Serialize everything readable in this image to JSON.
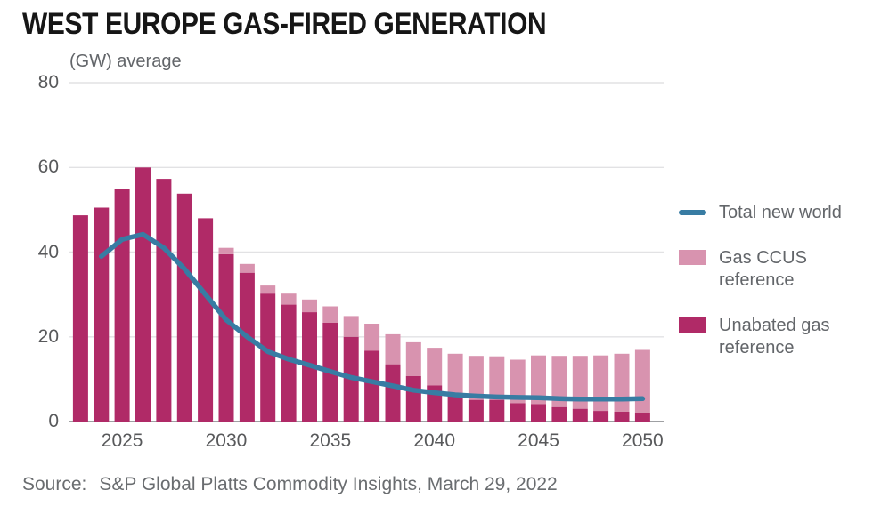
{
  "title": "WEST EUROPE GAS-FIRED GENERATION",
  "axis_note": "(GW) average",
  "source": {
    "label": "Source:",
    "text": "S&P Global Platts Commodity Insights, March 29, 2022"
  },
  "colors": {
    "unabated": "#b02a67",
    "ccus": "#d893af",
    "line": "#387ca3",
    "grid": "#e2e2e4",
    "axis_line": "#9fa0a3",
    "tick_text": "#58595b",
    "title_text": "#161616",
    "muted_text": "#63666a"
  },
  "legend": {
    "items": [
      {
        "label": "Total new world",
        "swatch": "line",
        "color": "#387ca3"
      },
      {
        "label": "Gas CCUS reference",
        "swatch": "rect",
        "color": "#d893af"
      },
      {
        "label": "Unabated gas reference",
        "swatch": "rect",
        "color": "#b02a67"
      }
    ]
  },
  "chart_data": {
    "type": "bar",
    "subtype": "stacked-bars-with-line",
    "title": "WEST EUROPE GAS-FIRED GENERATION",
    "ylabel": "(GW) average",
    "xlabel": "",
    "ylim": [
      0,
      80
    ],
    "yticks": [
      0,
      20,
      40,
      60,
      80
    ],
    "xticks": [
      2025,
      2030,
      2035,
      2040,
      2045,
      2050
    ],
    "grid": true,
    "legend_position": "right",
    "categories": [
      2023,
      2024,
      2025,
      2026,
      2027,
      2028,
      2029,
      2030,
      2031,
      2032,
      2033,
      2034,
      2035,
      2036,
      2037,
      2038,
      2039,
      2040,
      2041,
      2042,
      2043,
      2044,
      2045,
      2046,
      2047,
      2048,
      2049,
      2050
    ],
    "series": [
      {
        "name": "Unabated gas reference",
        "type": "bar",
        "stack": "gas",
        "values": [
          48.7,
          50.5,
          54.8,
          60.0,
          57.3,
          53.8,
          48.0,
          39.5,
          35.1,
          30.2,
          27.6,
          25.8,
          23.3,
          20.0,
          16.7,
          13.5,
          10.7,
          8.5,
          6.0,
          5.1,
          5.1,
          4.3,
          4.1,
          3.4,
          3.0,
          2.5,
          2.3,
          2.1
        ]
      },
      {
        "name": "Gas CCUS reference",
        "type": "bar",
        "stack": "gas",
        "values": [
          0,
          0,
          0,
          0,
          0,
          0,
          0,
          1.5,
          2.1,
          1.9,
          2.6,
          3.0,
          3.9,
          4.9,
          6.4,
          7.1,
          8.0,
          8.9,
          10.0,
          10.4,
          10.3,
          10.3,
          11.5,
          12.1,
          12.5,
          13.1,
          13.7,
          14.8
        ]
      },
      {
        "name": "Total new world",
        "type": "line",
        "x": [
          2024,
          2025,
          2026,
          2027,
          2028,
          2029,
          2030,
          2031,
          2032,
          2033,
          2034,
          2035,
          2036,
          2037,
          2038,
          2039,
          2040,
          2041,
          2042,
          2043,
          2044,
          2045,
          2046,
          2047,
          2048,
          2049,
          2050
        ],
        "values": [
          39.0,
          43.0,
          44.2,
          41.0,
          36.0,
          30.0,
          24.0,
          20.0,
          16.5,
          14.7,
          13.3,
          11.8,
          10.4,
          9.4,
          8.4,
          7.4,
          6.8,
          6.3,
          6.0,
          5.8,
          5.7,
          5.6,
          5.4,
          5.3,
          5.3,
          5.3,
          5.4
        ]
      }
    ]
  }
}
